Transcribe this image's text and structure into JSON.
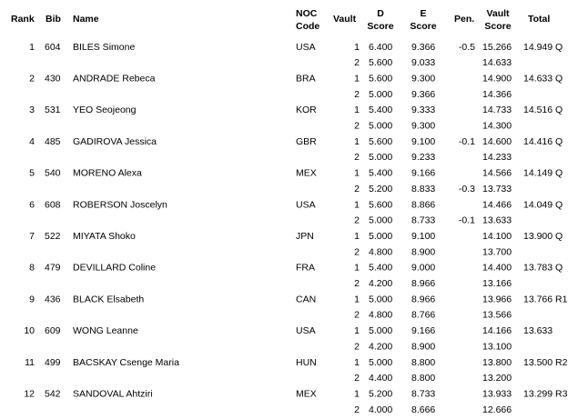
{
  "header": {
    "rank": "Rank",
    "bib": "Bib",
    "name": "Name",
    "noc": [
      "NOC",
      "Code"
    ],
    "vault": "Vault",
    "d": [
      "D",
      "Score"
    ],
    "e": [
      "E",
      "Score"
    ],
    "pen": "Pen.",
    "score": [
      "Vault",
      "Score"
    ],
    "total": "Total"
  },
  "athletes": [
    {
      "rank": "1",
      "bib": "604",
      "name": "BILES Simone",
      "noc": "USA",
      "total": "14.949 Q",
      "vaults": [
        {
          "vault": "1",
          "d": "6.400",
          "e": "9.366",
          "pen": "-0.5",
          "score": "15.266"
        },
        {
          "vault": "2",
          "d": "5.600",
          "e": "9.033",
          "score": "14.633"
        }
      ]
    },
    {
      "rank": "2",
      "bib": "430",
      "name": "ANDRADE Rebeca",
      "noc": "BRA",
      "total": "14.633 Q",
      "vaults": [
        {
          "vault": "1",
          "d": "5.600",
          "e": "9.300",
          "score": "14.900"
        },
        {
          "vault": "2",
          "d": "5.000",
          "e": "9.366",
          "score": "14.366"
        }
      ]
    },
    {
      "rank": "3",
      "bib": "531",
      "name": "YEO Seojeong",
      "noc": "KOR",
      "total": "14.516 Q",
      "vaults": [
        {
          "vault": "1",
          "d": "5.400",
          "e": "9.333",
          "score": "14.733"
        },
        {
          "vault": "2",
          "d": "5.000",
          "e": "9.300",
          "score": "14.300"
        }
      ]
    },
    {
      "rank": "4",
      "bib": "485",
      "name": "GADIROVA Jessica",
      "noc": "GBR",
      "total": "14.416 Q",
      "vaults": [
        {
          "vault": "1",
          "d": "5.600",
          "e": "9.100",
          "pen": "-0.1",
          "score": "14.600"
        },
        {
          "vault": "2",
          "d": "5.000",
          "e": "9.233",
          "score": "14.233"
        }
      ]
    },
    {
      "rank": "5",
      "bib": "540",
      "name": "MORENO Alexa",
      "noc": "MEX",
      "total": "14.149 Q",
      "vaults": [
        {
          "vault": "1",
          "d": "5.400",
          "e": "9.166",
          "score": "14.566"
        },
        {
          "vault": "2",
          "d": "5.200",
          "e": "8.833",
          "pen": "-0.3",
          "score": "13.733"
        }
      ]
    },
    {
      "rank": "6",
      "bib": "608",
      "name": "ROBERSON Joscelyn",
      "noc": "USA",
      "total": "14.049 Q",
      "vaults": [
        {
          "vault": "1",
          "d": "5.600",
          "e": "8.866",
          "score": "14.466"
        },
        {
          "vault": "2",
          "d": "5.000",
          "e": "8.733",
          "pen": "-0.1",
          "score": "13.633"
        }
      ]
    },
    {
      "rank": "7",
      "bib": "522",
      "name": "MIYATA Shoko",
      "noc": "JPN",
      "total": "13.900 Q",
      "vaults": [
        {
          "vault": "1",
          "d": "5.000",
          "e": "9.100",
          "score": "14.100"
        },
        {
          "vault": "2",
          "d": "4.800",
          "e": "8.900",
          "score": "13.700"
        }
      ]
    },
    {
      "rank": "8",
      "bib": "479",
      "name": "DEVILLARD Coline",
      "noc": "FRA",
      "total": "13.783 Q",
      "vaults": [
        {
          "vault": "1",
          "d": "5.400",
          "e": "9.000",
          "score": "14.400"
        },
        {
          "vault": "2",
          "d": "4.200",
          "e": "8.966",
          "score": "13.166"
        }
      ]
    },
    {
      "rank": "9",
      "bib": "436",
      "name": "BLACK Elsabeth",
      "noc": "CAN",
      "total": "13.766 R1",
      "vaults": [
        {
          "vault": "1",
          "d": "5.000",
          "e": "8.966",
          "score": "13.966"
        },
        {
          "vault": "2",
          "d": "4.800",
          "e": "8.766",
          "score": "13.566"
        }
      ]
    },
    {
      "rank": "10",
      "bib": "609",
      "name": "WONG Leanne",
      "noc": "USA",
      "total": "13.633",
      "vaults": [
        {
          "vault": "1",
          "d": "5.000",
          "e": "9.166",
          "score": "14.166"
        },
        {
          "vault": "2",
          "d": "4.200",
          "e": "8.900",
          "score": "13.100"
        }
      ]
    },
    {
      "rank": "11",
      "bib": "499",
      "name": "BACSKAY Csenge Maria",
      "noc": "HUN",
      "total": "13.500 R2",
      "vaults": [
        {
          "vault": "1",
          "d": "5.000",
          "e": "8.800",
          "score": "13.800"
        },
        {
          "vault": "2",
          "d": "4.400",
          "e": "8.800",
          "score": "13.200"
        }
      ]
    },
    {
      "rank": "12",
      "bib": "542",
      "name": "SANDOVAL Ahtziri",
      "noc": "MEX",
      "total": "13.299 R3",
      "vaults": [
        {
          "vault": "1",
          "d": "5.200",
          "e": "8.733",
          "score": "13.933"
        },
        {
          "vault": "2",
          "d": "4.000",
          "e": "8.666",
          "score": "12.666"
        }
      ]
    }
  ]
}
